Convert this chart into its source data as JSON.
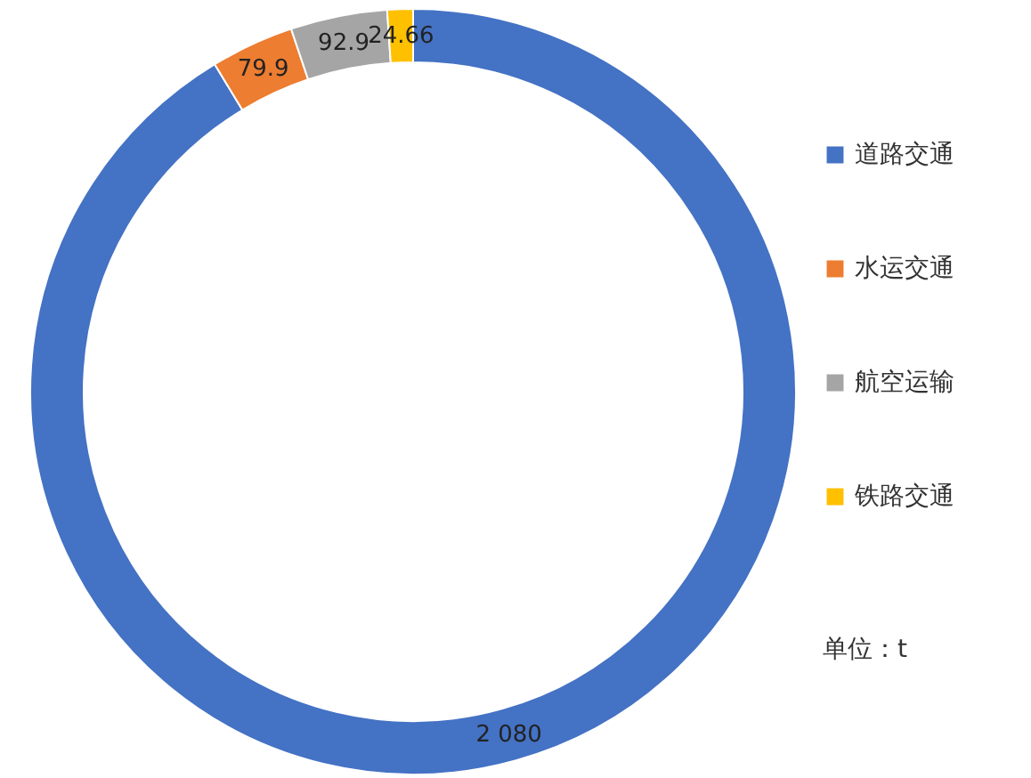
{
  "chart_data": {
    "type": "donut",
    "categories": [
      "道路交通",
      "水运交通",
      "航空运输",
      "铁路交通"
    ],
    "values": [
      2080,
      79.9,
      92.9,
      24.66
    ],
    "value_labels": [
      "2 080",
      "79.9",
      "92.9",
      "24.66"
    ],
    "colors": [
      "#4472c4",
      "#ed7d31",
      "#a5a5a5",
      "#ffc000"
    ],
    "legend": "right",
    "annotations": [
      "单位：t"
    ]
  }
}
